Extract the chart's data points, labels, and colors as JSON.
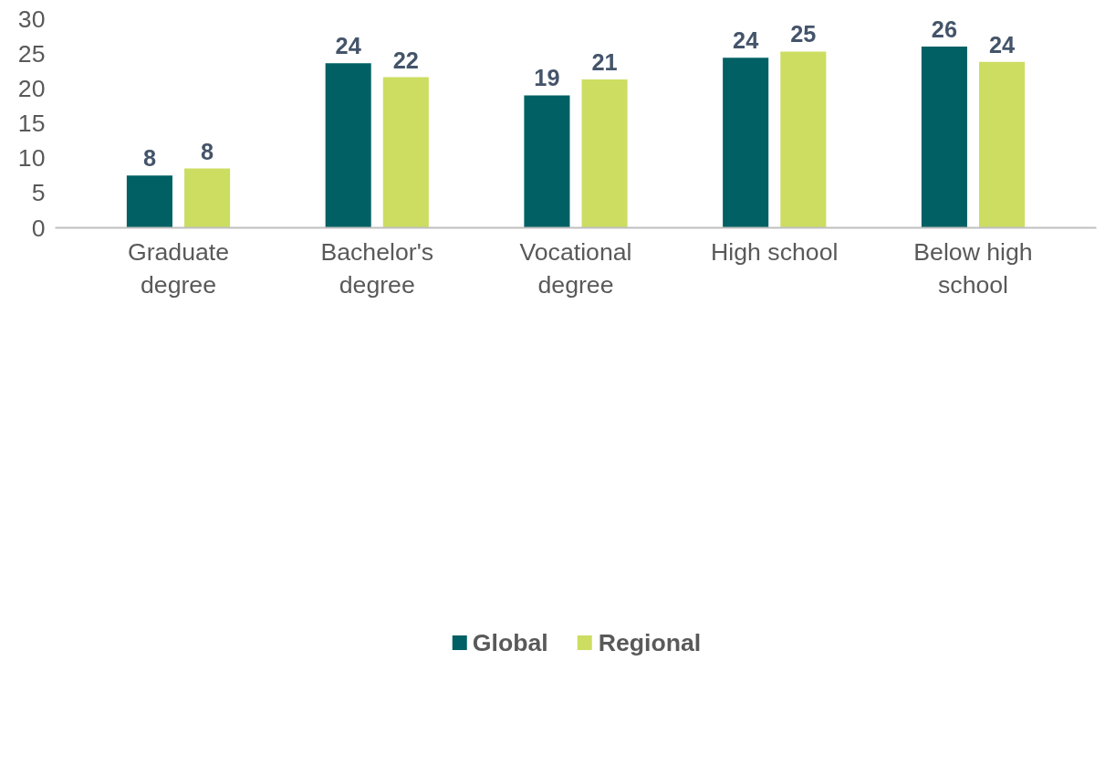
{
  "chart_data": {
    "type": "bar",
    "categories": [
      "Graduate degree",
      "Bachelor's degree",
      "Vocational degree",
      "High school",
      "Below high school"
    ],
    "series": [
      {
        "name": "Global",
        "color": "#006064",
        "values": [
          7.5,
          23.6,
          19.0,
          24.4,
          26.0
        ],
        "value_labels": [
          "8",
          "24",
          "19",
          "24",
          "26"
        ]
      },
      {
        "name": "Regional",
        "color": "#cddd62",
        "values": [
          8.5,
          21.6,
          21.3,
          25.3,
          23.8
        ],
        "value_labels": [
          "8",
          "22",
          "21",
          "25",
          "24"
        ]
      }
    ],
    "ylim": [
      0,
      30
    ],
    "yticks": [
      0,
      5,
      10,
      15,
      20,
      25,
      30
    ],
    "grid": false,
    "legend": "bottom"
  }
}
